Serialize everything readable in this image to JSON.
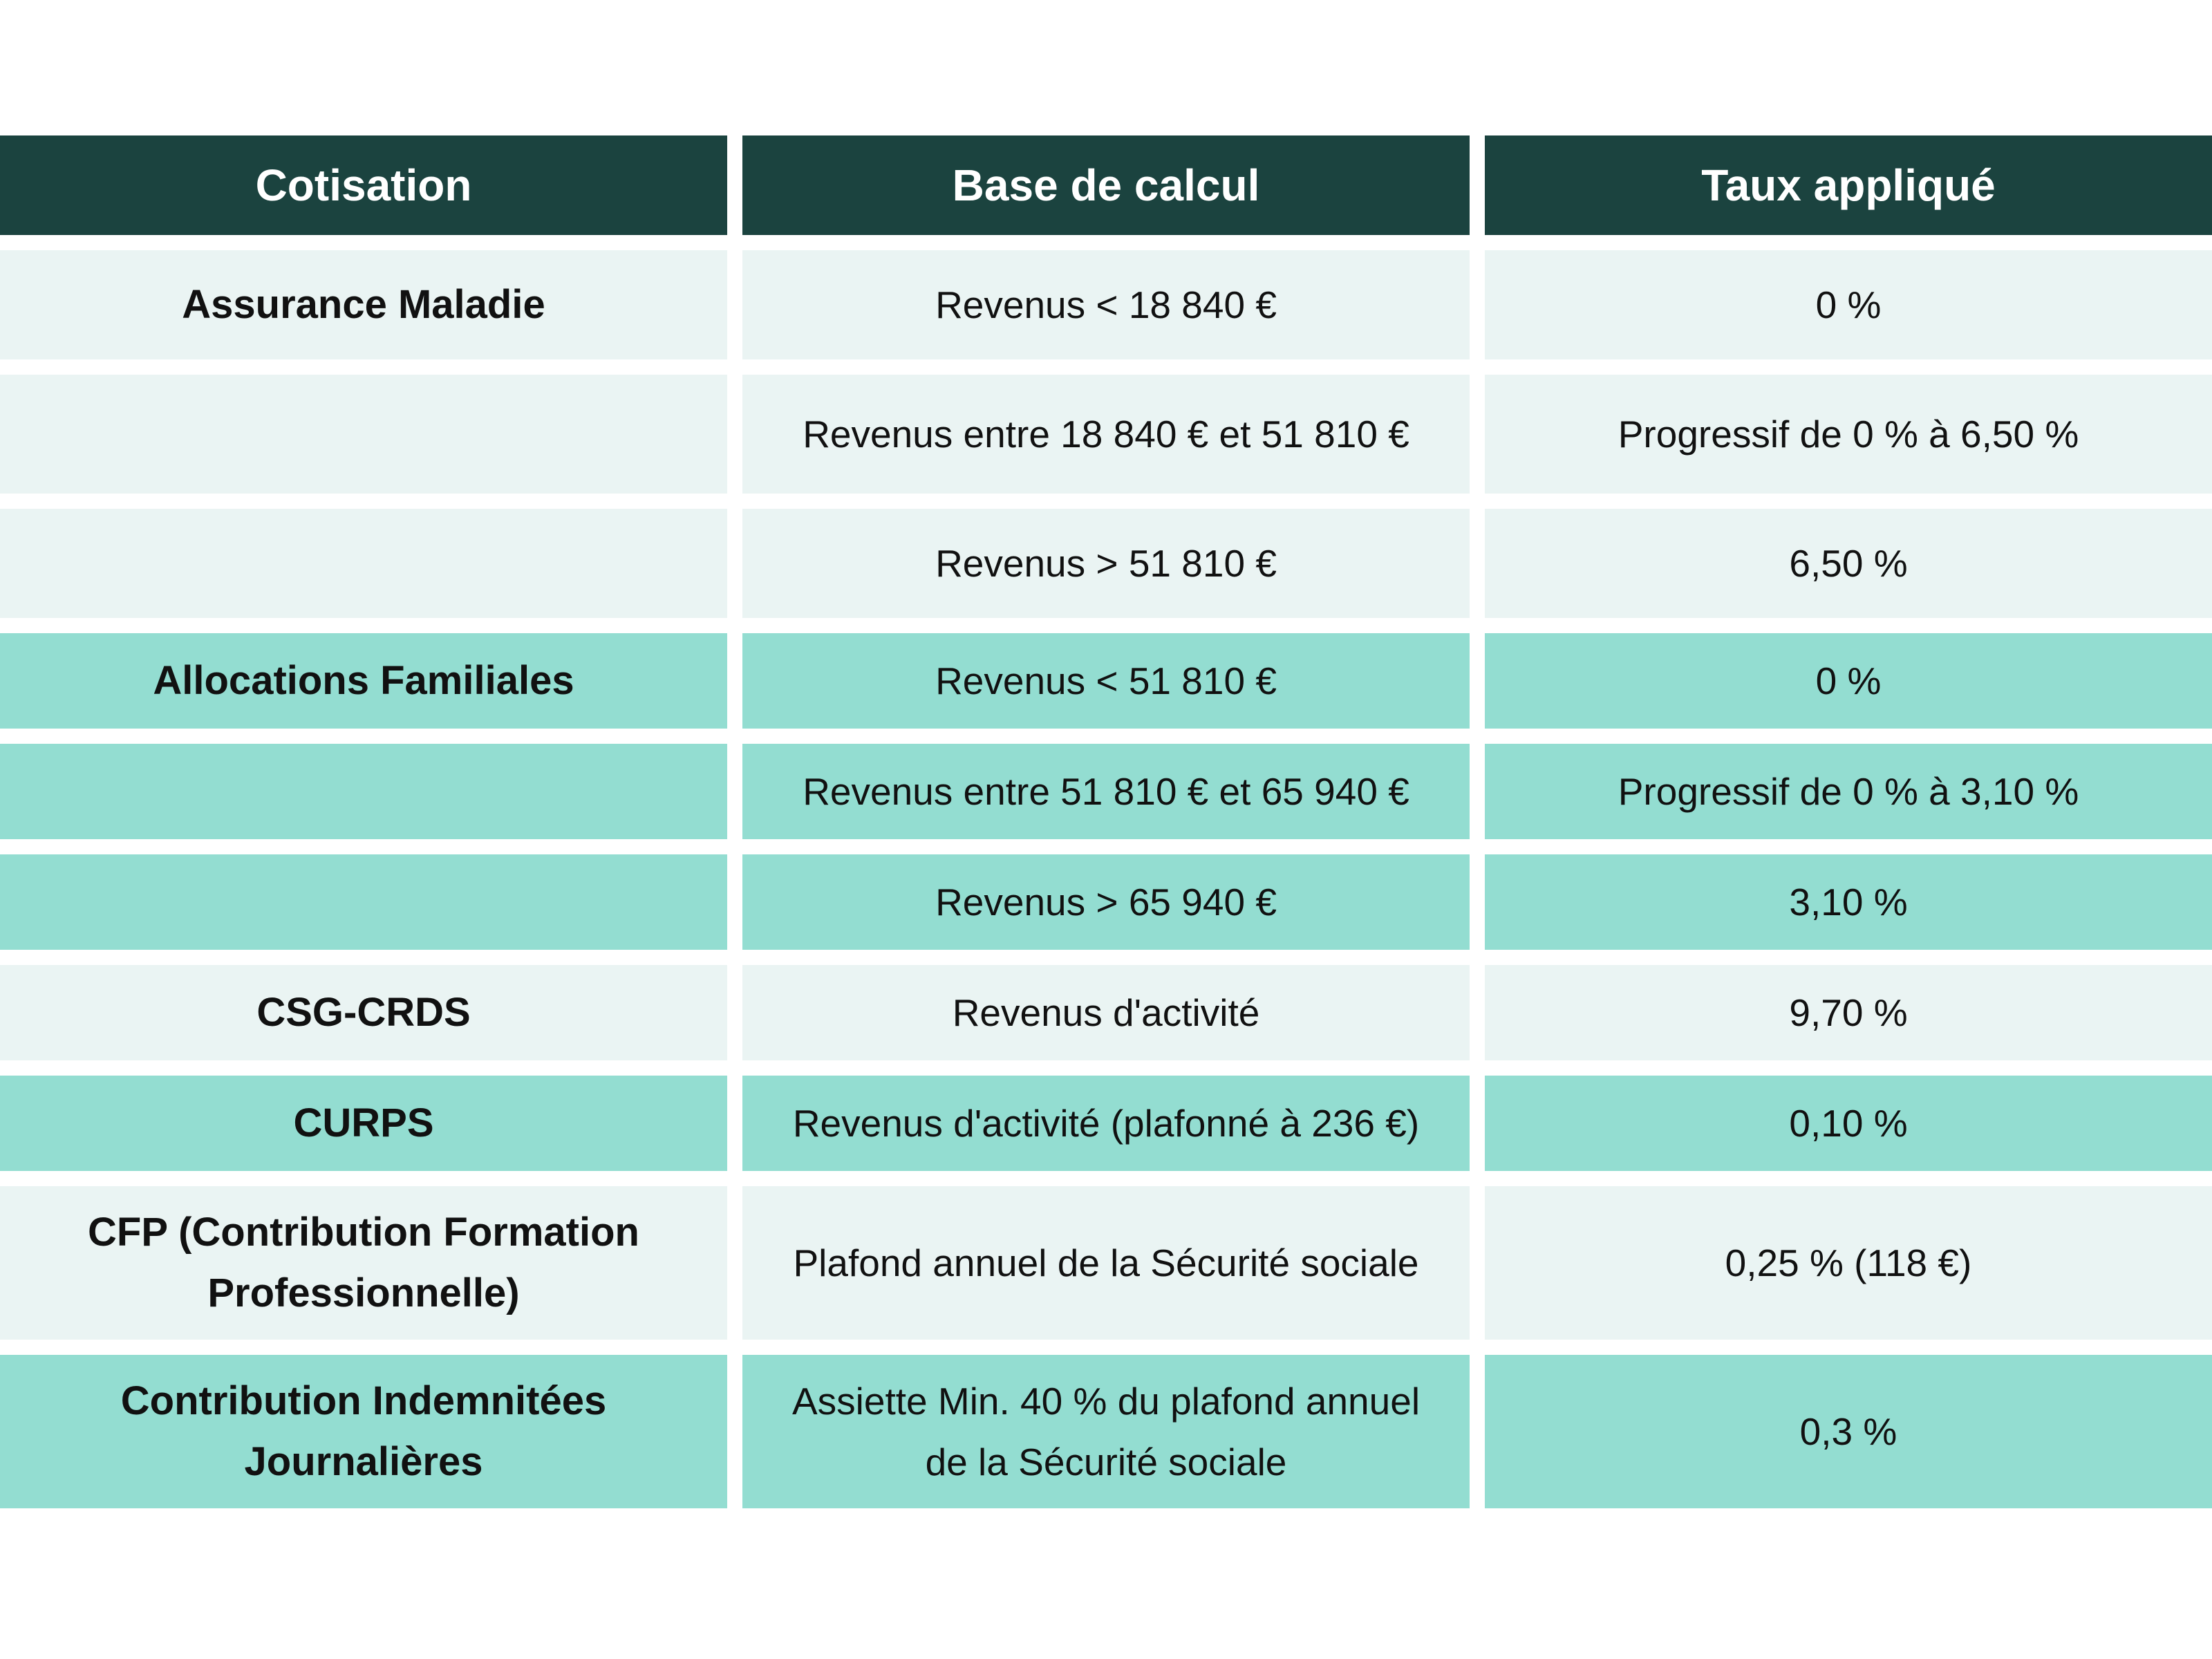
{
  "header": {
    "col1": "Cotisation",
    "col2": "Base de calcul",
    "col3": "Taux appliqué"
  },
  "rows": [
    {
      "cotisation": "Assurance Maladie",
      "base": "Revenus < 18 840 €",
      "taux": "0 %"
    },
    {
      "cotisation": "",
      "base": "Revenus entre 18 840 € et 51 810 €",
      "taux": "Progressif de 0 % à 6,50 %"
    },
    {
      "cotisation": "",
      "base": "Revenus > 51 810 €",
      "taux": "6,50 %"
    },
    {
      "cotisation": "Allocations Familiales",
      "base": "Revenus < 51 810 €",
      "taux": "0 %"
    },
    {
      "cotisation": "",
      "base": "Revenus entre 51 810 € et 65 940 €",
      "taux": "Progressif de 0 % à 3,10 %"
    },
    {
      "cotisation": "",
      "base": "Revenus > 65 940 €",
      "taux": "3,10 %"
    },
    {
      "cotisation": "CSG-CRDS",
      "base": "Revenus d'activité",
      "taux": "9,70 %"
    },
    {
      "cotisation": "CURPS",
      "base": "Revenus d'activité (plafonné à 236 €)",
      "taux": "0,10 %"
    },
    {
      "cotisation": "CFP (Contribution Formation\nProfessionnelle)",
      "base": "Plafond annuel de la Sécurité sociale",
      "taux": "0,25 % (118 €)"
    },
    {
      "cotisation": "Contribution Indemnitées\nJournalières",
      "base": "Assiette Min. 40 % du plafond annuel\nde la Sécurité sociale",
      "taux": "0,3 %"
    }
  ],
  "colors": {
    "header_bg": "#1b433f",
    "row_light": "#eaf4f3",
    "row_teal": "#93ddd1"
  }
}
